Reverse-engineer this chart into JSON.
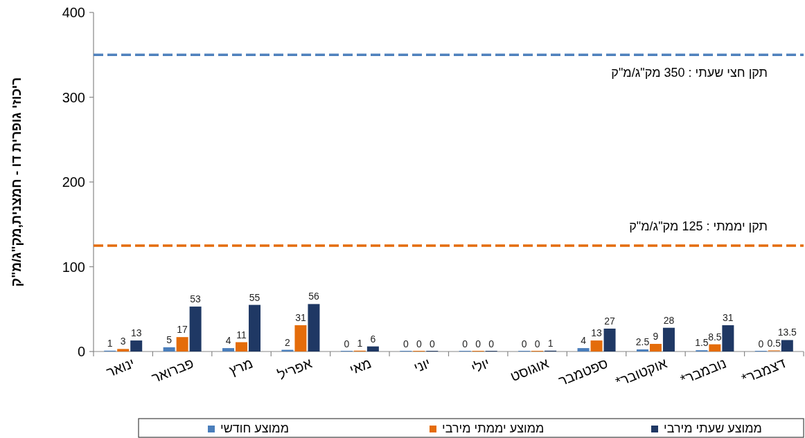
{
  "chart_data": {
    "type": "bar",
    "ylabel": "ריכוזי גופרית דו - חמצנית,מק\"ג/מ\"ק",
    "categories": [
      "ינואר",
      "פברואר",
      "מרץ",
      "אפריל",
      "מאי",
      "יוני",
      "יולי",
      "אוגוסט",
      "ספטמבר",
      "אוקטובר*",
      "נובמבר*",
      "דצמבר*"
    ],
    "series": [
      {
        "name": "ממוצע חודשי",
        "color": "#4a7ebb",
        "values": [
          1,
          5,
          4,
          2,
          0,
          0,
          0,
          0,
          4,
          2.5,
          1.5,
          0
        ]
      },
      {
        "name": "ממוצע יממתי מירבי",
        "color": "#e46c0a",
        "values": [
          3,
          17,
          11,
          31,
          1,
          0,
          0,
          0,
          13,
          9,
          8.5,
          0.5
        ]
      },
      {
        "name": "ממוצע  שעתי מירבי",
        "color": "#1f3864",
        "values": [
          13,
          53,
          55,
          56,
          6,
          0,
          0,
          1,
          27,
          28,
          31,
          13.5
        ]
      }
    ],
    "ylim": [
      0,
      400
    ],
    "yticks": [
      0,
      100,
      200,
      300,
      400
    ],
    "data_labels": true,
    "legend": "bottom",
    "ref_lines": [
      {
        "axis": "y",
        "value": 350,
        "label": "תקן חצי שעתי : 350 מק\"ג/מ\"ק",
        "color": "#4f81bd",
        "line_style": "dashed"
      },
      {
        "axis": "y",
        "value": 125,
        "label": "תקן יממתי : 125 מק\"ג/מ\"ק",
        "color": "#e46c0a",
        "line_style": "dashed"
      }
    ]
  }
}
